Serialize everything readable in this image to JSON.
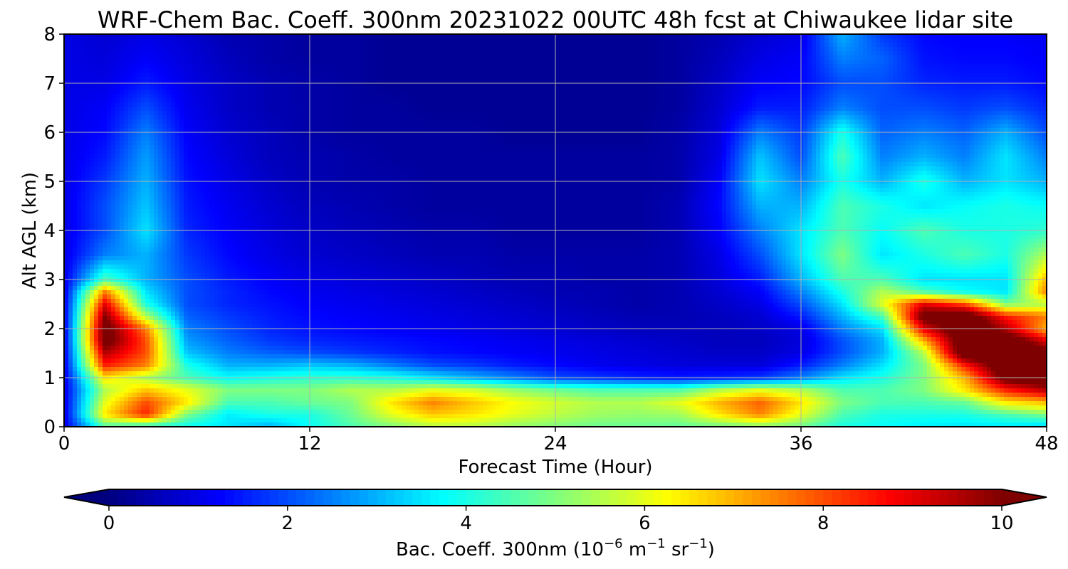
{
  "chart_data": {
    "type": "heatmap",
    "title": "WRF-Chem Bac. Coeff. 300nm  20231022 00UTC 48h fcst at Chiwaukee lidar site",
    "xlabel": "Forecast Time (Hour)",
    "ylabel": "Alt AGL (km)",
    "xlim": [
      0,
      48
    ],
    "ylim": [
      0,
      8
    ],
    "xticks": [
      0,
      12,
      24,
      36,
      48
    ],
    "yticks": [
      0,
      1,
      2,
      3,
      4,
      5,
      6,
      7,
      8
    ],
    "grid": true,
    "colormap": "jet",
    "colorbar": {
      "orientation": "horizontal",
      "placement": "bottom",
      "label_prefix": "Bac. Coeff. 300nm  (10",
      "label_exp1": "−6",
      "label_mid": " m",
      "label_exp2": "−1",
      "label_mid2": " sr",
      "label_exp3": "−1",
      "label_suffix": ")",
      "min": 0,
      "max": 10,
      "ticks": [
        0,
        2,
        4,
        6,
        8,
        10
      ],
      "extend": "both",
      "under_color": "#00007f",
      "over_color": "#7f0000"
    },
    "hours": [
      0,
      2,
      4,
      6,
      8,
      10,
      12,
      14,
      16,
      18,
      20,
      22,
      24,
      26,
      28,
      30,
      32,
      34,
      36,
      38,
      40,
      42,
      44,
      46,
      48
    ],
    "altitudes_km": [
      0,
      0.25,
      0.5,
      0.75,
      1,
      1.25,
      1.5,
      1.75,
      2,
      2.25,
      2.5,
      2.75,
      3,
      3.5,
      4,
      4.5,
      5,
      5.5,
      6,
      6.5,
      7,
      7.5,
      8
    ],
    "values": [
      [
        1.0,
        4.5,
        4.0,
        3.8,
        3.5,
        3.0,
        3.8,
        4.5,
        5.0,
        5.5,
        5.5,
        5.2,
        5.0,
        4.8,
        4.8,
        4.7,
        4.8,
        5.0,
        4.8,
        4.0,
        3.8,
        3.6,
        3.5,
        3.5,
        3.3
      ],
      [
        1.0,
        6.5,
        8.5,
        5.0,
        3.6,
        4.0,
        4.0,
        4.8,
        6.0,
        6.8,
        6.5,
        6.0,
        5.6,
        5.3,
        5.2,
        5.3,
        6.5,
        7.5,
        6.0,
        4.5,
        4.0,
        4.0,
        4.0,
        4.5,
        5.0
      ],
      [
        1.0,
        6.0,
        8.0,
        6.5,
        4.5,
        4.5,
        4.8,
        5.0,
        6.5,
        7.5,
        6.8,
        6.2,
        5.8,
        5.5,
        5.5,
        6.0,
        7.0,
        7.8,
        6.5,
        5.0,
        4.5,
        4.5,
        4.8,
        6.5,
        7.0
      ],
      [
        1.0,
        5.5,
        6.8,
        6.0,
        5.0,
        5.0,
        5.0,
        5.5,
        5.5,
        6.0,
        5.8,
        5.2,
        4.8,
        4.5,
        4.5,
        4.5,
        5.5,
        6.0,
        5.5,
        4.5,
        4.5,
        5.0,
        6.5,
        8.5,
        9.5
      ],
      [
        1.0,
        6.5,
        5.5,
        4.5,
        3.8,
        4.0,
        4.2,
        4.2,
        4.0,
        3.5,
        3.0,
        2.5,
        2.0,
        1.8,
        1.6,
        1.5,
        1.6,
        1.8,
        2.5,
        3.5,
        4.0,
        5.0,
        7.0,
        10.5,
        11.0
      ],
      [
        1.0,
        8.5,
        7.5,
        4.0,
        3.0,
        3.0,
        3.2,
        3.0,
        2.5,
        2.0,
        1.8,
        1.5,
        1.3,
        1.1,
        1.0,
        0.9,
        0.9,
        0.9,
        1.5,
        2.5,
        3.5,
        5.0,
        8.5,
        11.0,
        11.0
      ],
      [
        1.0,
        9.5,
        8.0,
        3.2,
        2.5,
        2.2,
        2.0,
        1.8,
        1.6,
        1.4,
        1.3,
        1.2,
        1.1,
        1.0,
        0.9,
        0.8,
        0.7,
        0.7,
        1.0,
        2.0,
        3.0,
        5.5,
        11.0,
        11.0,
        10.5
      ],
      [
        1.0,
        10.5,
        8.0,
        2.8,
        2.2,
        1.8,
        1.6,
        1.5,
        1.4,
        1.3,
        1.2,
        1.1,
        1.0,
        0.9,
        0.8,
        0.7,
        0.6,
        0.6,
        0.9,
        2.0,
        3.0,
        7.0,
        11.0,
        11.0,
        9.0
      ],
      [
        1.0,
        10.5,
        7.5,
        2.5,
        2.0,
        1.6,
        1.4,
        1.3,
        1.2,
        1.1,
        1.0,
        0.9,
        0.8,
        0.7,
        0.6,
        0.6,
        0.6,
        0.7,
        1.0,
        2.5,
        3.5,
        9.0,
        11.0,
        9.5,
        7.0
      ],
      [
        1.0,
        10.0,
        5.5,
        2.2,
        1.8,
        1.5,
        1.3,
        1.2,
        1.1,
        1.0,
        0.9,
        0.8,
        0.7,
        0.6,
        0.5,
        0.5,
        0.6,
        0.8,
        1.5,
        3.0,
        4.5,
        10.5,
        11.0,
        8.5,
        7.5
      ],
      [
        1.0,
        9.0,
        4.0,
        2.0,
        1.6,
        1.4,
        1.2,
        1.1,
        1.0,
        0.9,
        0.8,
        0.7,
        0.6,
        0.5,
        0.4,
        0.5,
        0.7,
        1.0,
        2.0,
        3.5,
        6.0,
        9.0,
        8.0,
        5.0,
        5.5
      ],
      [
        1.0,
        7.5,
        3.5,
        2.0,
        1.6,
        1.3,
        1.1,
        1.0,
        0.9,
        0.8,
        0.7,
        0.6,
        0.5,
        0.5,
        0.4,
        0.5,
        0.8,
        1.2,
        2.5,
        4.0,
        5.5,
        4.5,
        3.8,
        3.5,
        7.5
      ],
      [
        1.0,
        4.5,
        3.0,
        2.0,
        1.5,
        1.2,
        1.0,
        0.9,
        0.8,
        0.7,
        0.6,
        0.5,
        0.5,
        0.4,
        0.4,
        0.5,
        0.9,
        1.5,
        3.0,
        4.5,
        4.5,
        3.5,
        3.5,
        3.5,
        7.0
      ],
      [
        1.0,
        2.5,
        3.0,
        1.8,
        1.3,
        1.0,
        0.8,
        0.7,
        0.6,
        0.5,
        0.5,
        0.4,
        0.4,
        0.4,
        0.4,
        0.5,
        1.0,
        2.0,
        3.5,
        5.0,
        3.5,
        4.0,
        4.5,
        4.0,
        5.5
      ],
      [
        1.0,
        2.0,
        3.5,
        1.6,
        1.2,
        0.9,
        0.7,
        0.6,
        0.5,
        0.4,
        0.4,
        0.3,
        0.3,
        0.3,
        0.3,
        0.5,
        1.2,
        2.5,
        3.5,
        4.5,
        3.8,
        4.5,
        4.0,
        4.0,
        4.2
      ],
      [
        1.0,
        2.0,
        3.2,
        1.5,
        1.1,
        0.8,
        0.6,
        0.5,
        0.4,
        0.3,
        0.3,
        0.3,
        0.3,
        0.3,
        0.3,
        0.5,
        1.3,
        3.0,
        3.0,
        4.5,
        4.0,
        3.5,
        3.8,
        4.0,
        3.8
      ],
      [
        1.0,
        1.8,
        3.0,
        1.4,
        1.0,
        0.7,
        0.5,
        0.4,
        0.4,
        0.3,
        0.3,
        0.3,
        0.3,
        0.3,
        0.3,
        0.4,
        1.2,
        3.5,
        2.5,
        4.0,
        3.0,
        4.0,
        3.0,
        3.5,
        3.0
      ],
      [
        1.0,
        1.5,
        2.8,
        1.3,
        0.9,
        0.6,
        0.5,
        0.4,
        0.3,
        0.3,
        0.3,
        0.3,
        0.3,
        0.3,
        0.3,
        0.4,
        1.0,
        3.2,
        2.0,
        4.5,
        2.5,
        3.0,
        2.5,
        3.5,
        2.5
      ],
      [
        1.0,
        1.3,
        2.5,
        1.2,
        0.8,
        0.6,
        0.4,
        0.3,
        0.3,
        0.3,
        0.3,
        0.2,
        0.2,
        0.2,
        0.2,
        0.4,
        0.9,
        2.5,
        1.8,
        4.0,
        2.2,
        2.5,
        2.2,
        3.0,
        2.0
      ],
      [
        1.0,
        1.2,
        2.0,
        1.1,
        0.7,
        0.5,
        0.4,
        0.3,
        0.3,
        0.2,
        0.2,
        0.2,
        0.2,
        0.2,
        0.2,
        0.3,
        0.8,
        1.5,
        1.5,
        2.5,
        2.0,
        2.0,
        1.8,
        2.0,
        1.6
      ],
      [
        1.0,
        1.0,
        1.5,
        1.0,
        0.7,
        0.5,
        0.4,
        0.3,
        0.2,
        0.2,
        0.2,
        0.2,
        0.2,
        0.2,
        0.2,
        0.3,
        0.7,
        1.2,
        1.3,
        2.0,
        2.0,
        1.6,
        1.5,
        1.5,
        1.3
      ],
      [
        1.0,
        0.9,
        1.2,
        0.9,
        0.6,
        0.4,
        0.3,
        0.3,
        0.2,
        0.2,
        0.2,
        0.2,
        0.2,
        0.2,
        0.2,
        0.3,
        0.6,
        1.0,
        1.2,
        2.5,
        2.2,
        1.4,
        1.3,
        1.3,
        1.2
      ],
      [
        1.0,
        0.8,
        1.0,
        0.8,
        0.5,
        0.4,
        0.3,
        0.3,
        0.2,
        0.2,
        0.2,
        0.2,
        0.2,
        0.2,
        0.2,
        0.3,
        0.5,
        0.8,
        1.0,
        3.0,
        1.8,
        1.3,
        1.2,
        1.2,
        1.1
      ]
    ]
  }
}
